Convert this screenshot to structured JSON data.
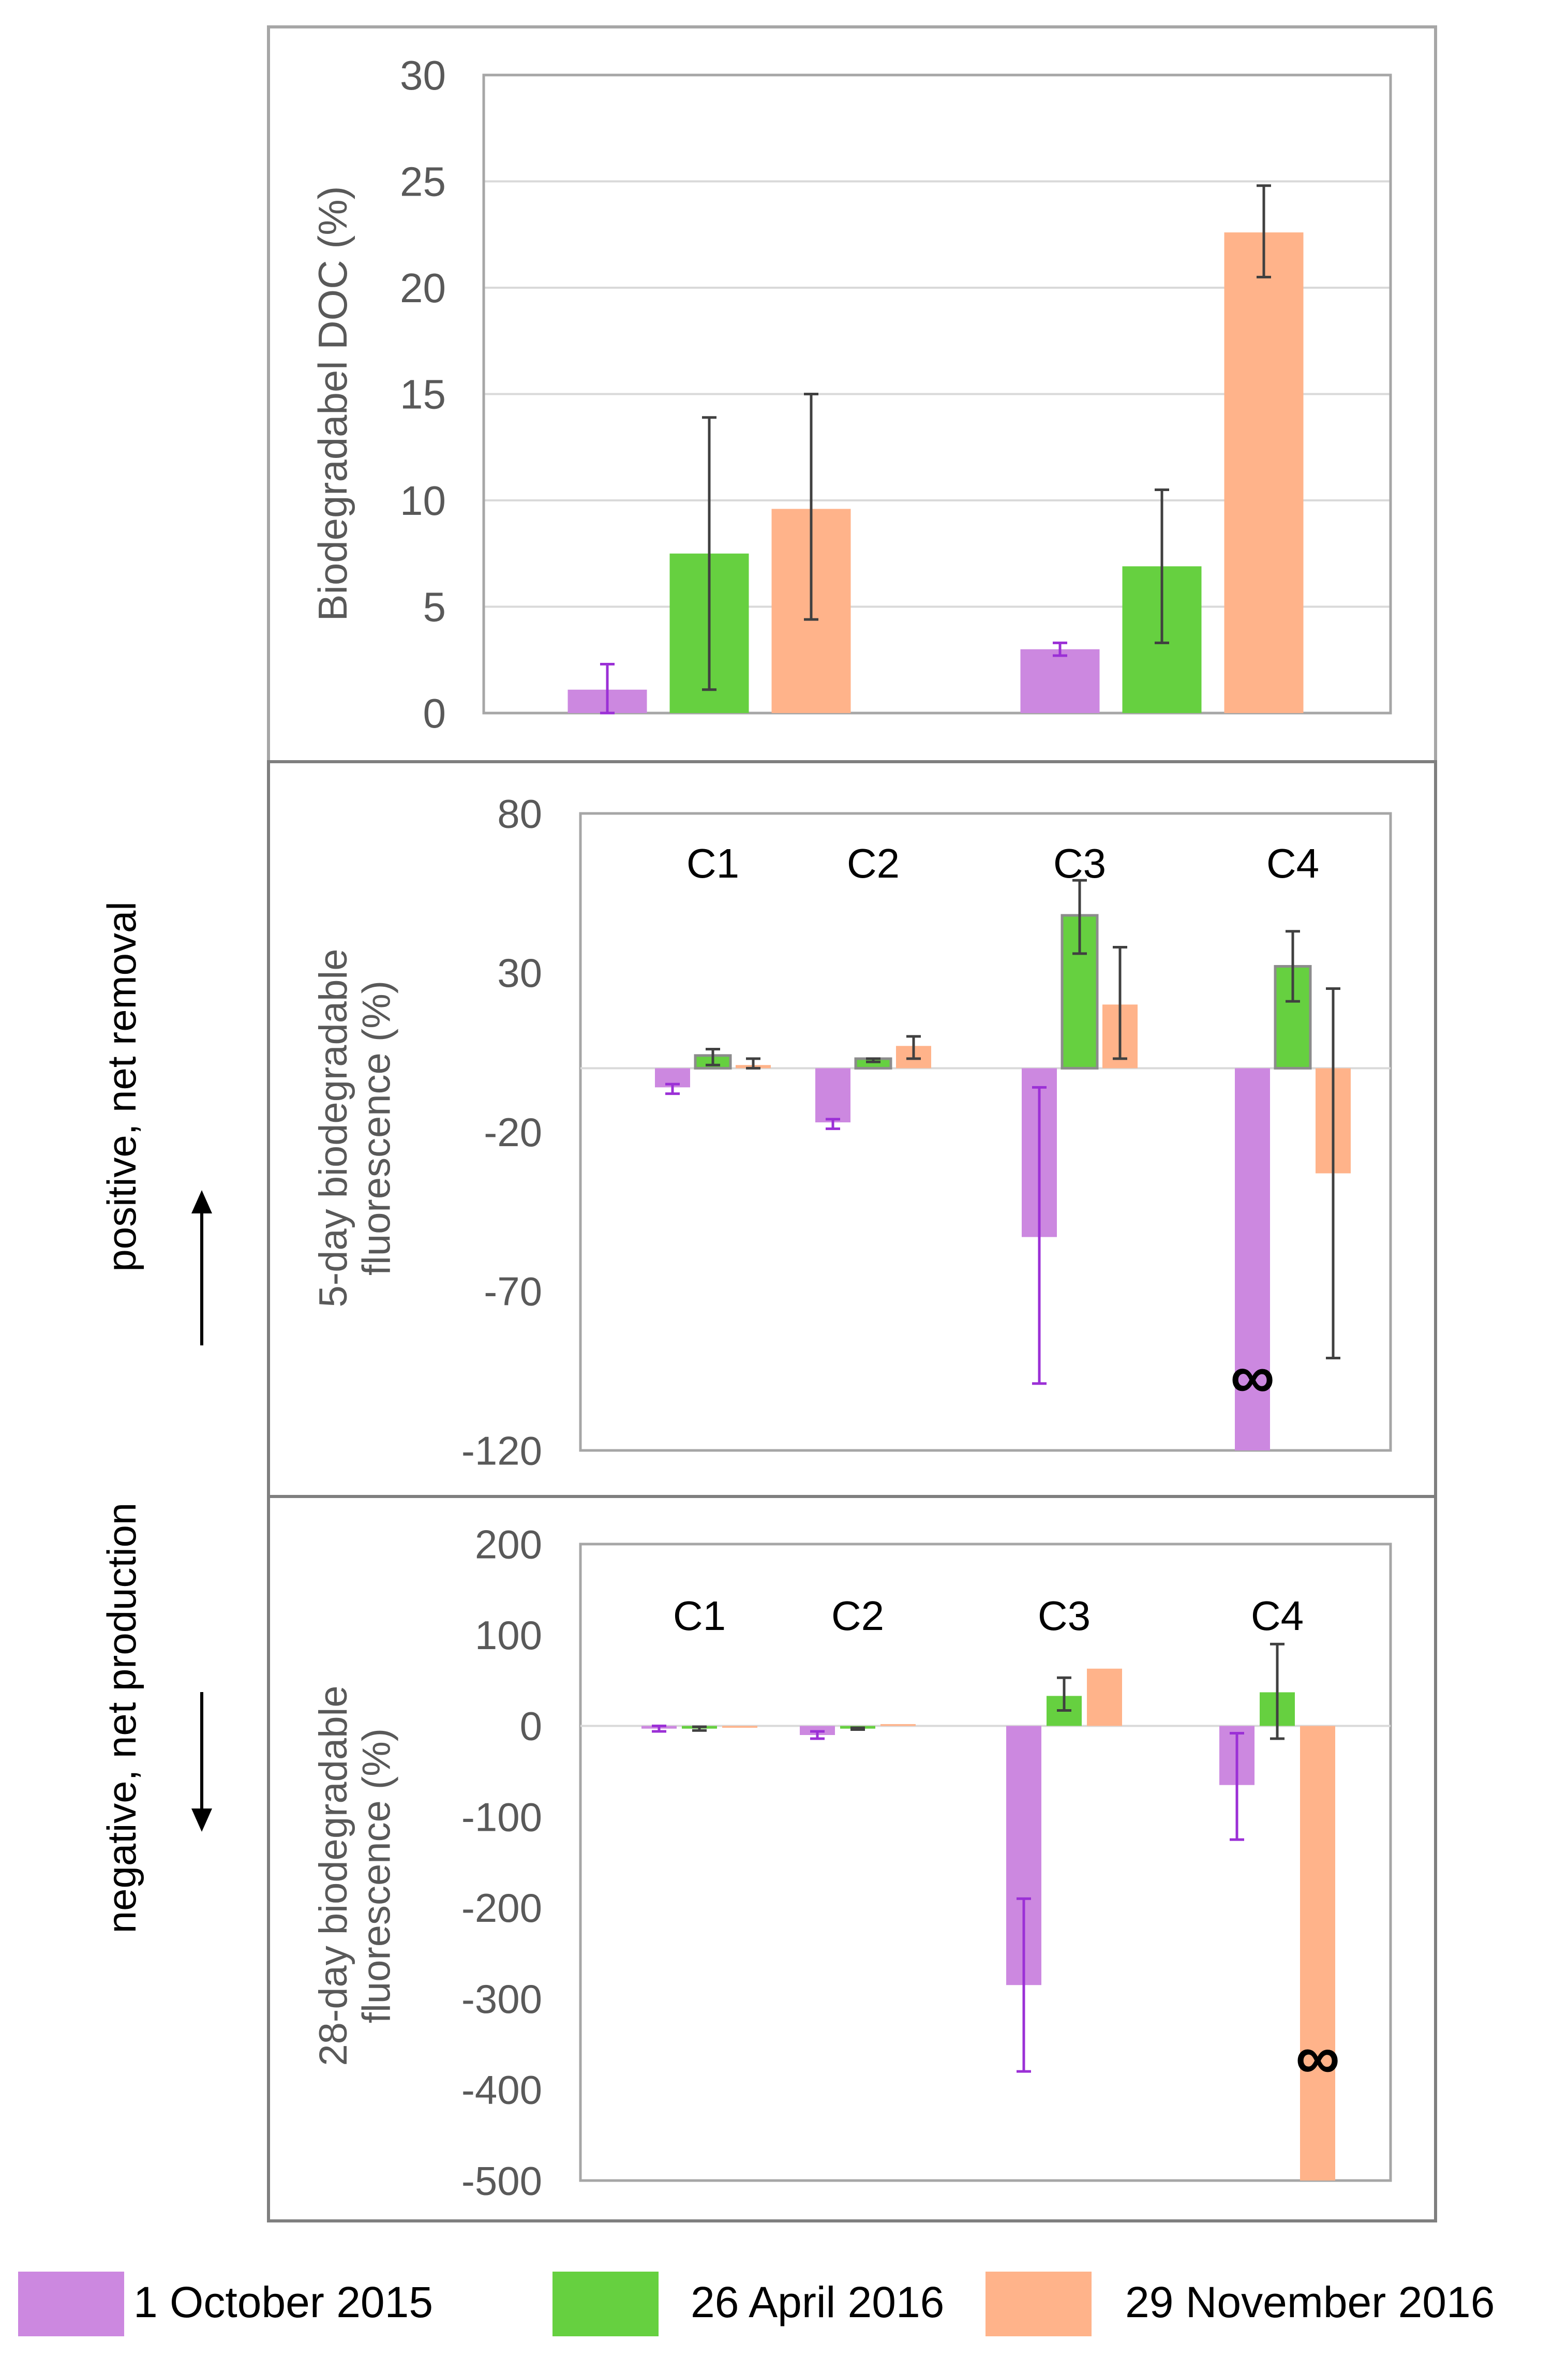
{
  "side_labels": {
    "positive": "positive, net removal",
    "negative": "negative, net production"
  },
  "legend": [
    {
      "name": "1 October 2015",
      "color": "#cc88e0"
    },
    {
      "name": "26 April 2016",
      "color": "#66d040"
    },
    {
      "name": "29 November 2016",
      "color": "#ffb38a"
    }
  ],
  "infinity_symbol": "∞",
  "chart_data": [
    {
      "type": "bar",
      "ylabel": "Biodegradabel DOC (%)",
      "ylim": [
        0,
        30
      ],
      "yticks": [
        0,
        5,
        10,
        15,
        20,
        25,
        30
      ],
      "grid": true,
      "groups": 2,
      "series": [
        {
          "name": "1 October 2015",
          "values": [
            1.1,
            3.0
          ],
          "err_low": [
            0,
            2.7
          ],
          "err_high": [
            2.3,
            3.3
          ],
          "err_color": "#9b30d6"
        },
        {
          "name": "26 April 2016",
          "values": [
            7.5,
            6.9
          ],
          "err_low": [
            1.1,
            3.3
          ],
          "err_high": [
            13.9,
            10.5
          ],
          "err_color": "#404040"
        },
        {
          "name": "29 November 2016",
          "values": [
            9.6,
            22.6
          ],
          "err_low": [
            4.4,
            20.5
          ],
          "err_high": [
            15.0,
            24.8
          ],
          "err_color": "#404040"
        }
      ]
    },
    {
      "type": "bar",
      "ylabel_lines": [
        "5-day biodegradable",
        "fluorescence (%)"
      ],
      "ylim": [
        -120,
        80
      ],
      "yticks": [
        80,
        30,
        -20,
        -70,
        -120
      ],
      "categories": [
        "C1",
        "C2",
        "C3",
        "C4"
      ],
      "infinity_at": {
        "series": 0,
        "category": 3
      },
      "series": [
        {
          "name": "1 October 2015",
          "values": [
            -6,
            -17,
            -53,
            -125
          ],
          "err_low": [
            -8,
            -19,
            -99,
            -125
          ],
          "err_high": [
            -5,
            -16,
            -6,
            -125
          ],
          "err_color": "#9b30d6"
        },
        {
          "name": "26 April 2016",
          "values": [
            4,
            3,
            48,
            32
          ],
          "err_low": [
            1,
            2,
            36,
            21
          ],
          "err_high": [
            6,
            3,
            59,
            43
          ],
          "err_color": "#404040",
          "outlined": true
        },
        {
          "name": "29 November 2016",
          "values": [
            1,
            7,
            20,
            -33
          ],
          "err_low": [
            0,
            3,
            3,
            -91
          ],
          "err_high": [
            3,
            10,
            38,
            25
          ],
          "err_color": "#404040"
        }
      ]
    },
    {
      "type": "bar",
      "ylabel_lines": [
        "28-day biodegradable",
        "fluorescence (%)"
      ],
      "ylim": [
        -500,
        200
      ],
      "yticks": [
        200,
        100,
        0,
        -100,
        -200,
        -300,
        -400,
        -500
      ],
      "categories": [
        "C1",
        "C2",
        "C3",
        "C4"
      ],
      "infinity_at": {
        "series": 2,
        "category": 3
      },
      "series": [
        {
          "name": "1 October 2015",
          "values": [
            -3,
            -10,
            -285,
            -65
          ],
          "err_low": [
            -6,
            -14,
            -380,
            -125
          ],
          "err_high": [
            0,
            -6,
            -190,
            -8
          ],
          "err_color": "#9b30d6"
        },
        {
          "name": "26 April 2016",
          "values": [
            -3,
            -3,
            33,
            37
          ],
          "err_low": [
            -5,
            -4,
            17,
            -14
          ],
          "err_high": [
            -1,
            -2,
            53,
            90
          ],
          "err_color": "#404040"
        },
        {
          "name": "29 November 2016",
          "values": [
            -2,
            2,
            63,
            -505
          ],
          "err_low": [
            -2,
            2,
            63,
            -505
          ],
          "err_high": [
            -2,
            2,
            63,
            -505
          ],
          "err_color": "#404040"
        }
      ]
    }
  ]
}
